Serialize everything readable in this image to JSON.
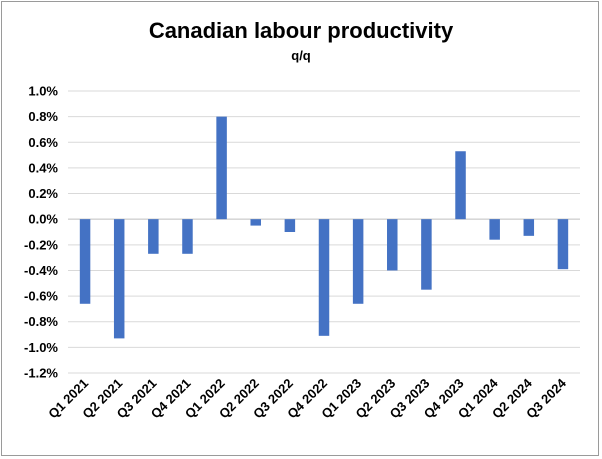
{
  "chart_data": {
    "type": "bar",
    "title": "Canadian labour productivity",
    "subtitle": "q/q",
    "xlabel": "",
    "ylabel": "",
    "categories": [
      "Q1 2021",
      "Q2 2021",
      "Q3 2021",
      "Q4 2021",
      "Q1 2022",
      "Q2 2022",
      "Q3 2022",
      "Q4 2022",
      "Q1 2023",
      "Q2 2023",
      "Q3 2023",
      "Q4 2023",
      "Q1 2024",
      "Q2 2024",
      "Q3 2024"
    ],
    "values": [
      -0.66,
      -0.93,
      -0.27,
      -0.27,
      0.8,
      -0.05,
      -0.1,
      -0.91,
      -0.66,
      -0.4,
      -0.55,
      0.53,
      -0.16,
      -0.13,
      -0.39
    ],
    "ylim": [
      -1.2,
      1.0
    ],
    "yticks": [
      "1.0%",
      "0.8%",
      "0.6%",
      "0.4%",
      "0.2%",
      "0.0%",
      "-0.2%",
      "-0.4%",
      "-0.6%",
      "-0.8%",
      "-1.0%",
      "-1.2%"
    ],
    "grid": true,
    "bar_color": "#4472C4"
  }
}
